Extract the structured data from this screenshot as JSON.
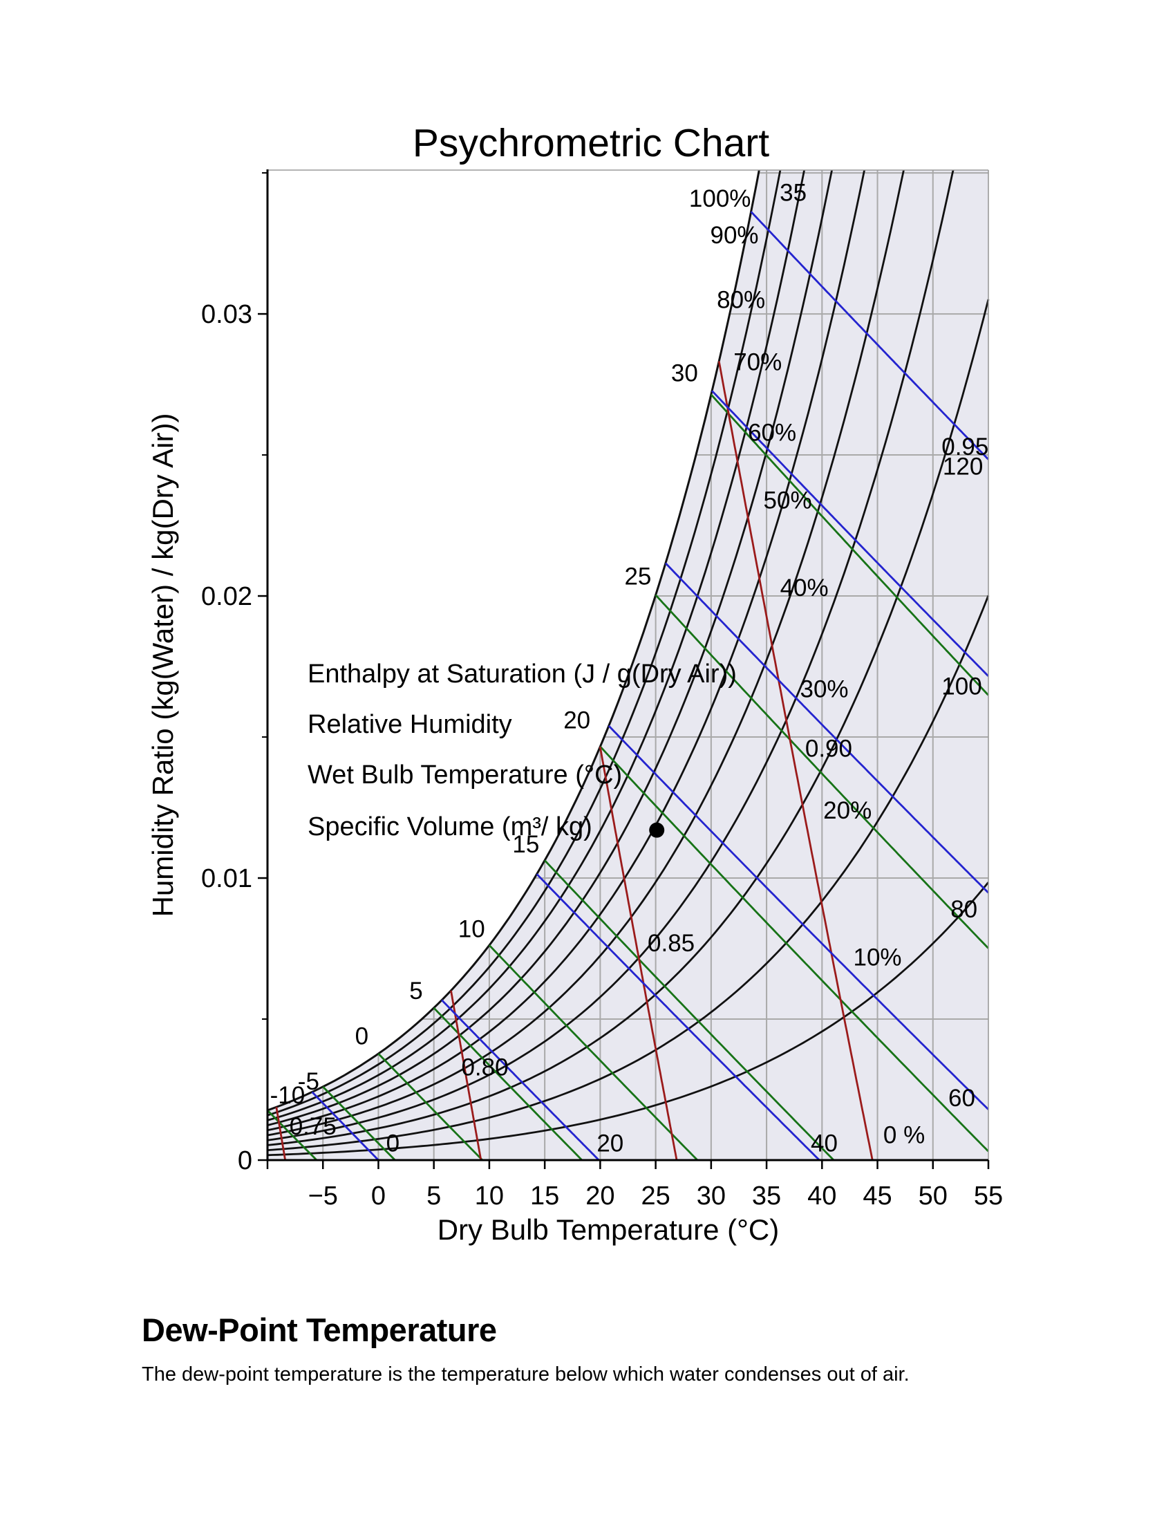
{
  "chart_data": {
    "type": "line",
    "title": "Psychrometric Chart",
    "xlabel": "Dry Bulb Temperature (°C)",
    "ylabel": "Humidity Ratio (kg(Water) / kg(Dry Air))",
    "xlim": [
      -10,
      55
    ],
    "ylim": [
      0,
      0.0351
    ],
    "grid": true,
    "x_ticks": [
      {
        "v": -10,
        "label": ""
      },
      {
        "v": -5,
        "label": "−5"
      },
      {
        "v": 0,
        "label": "0"
      },
      {
        "v": 5,
        "label": "5"
      },
      {
        "v": 10,
        "label": "10"
      },
      {
        "v": 15,
        "label": "15"
      },
      {
        "v": 20,
        "label": "20"
      },
      {
        "v": 25,
        "label": "25"
      },
      {
        "v": 30,
        "label": "30"
      },
      {
        "v": 35,
        "label": "35"
      },
      {
        "v": 40,
        "label": "40"
      },
      {
        "v": 45,
        "label": "45"
      },
      {
        "v": 50,
        "label": "50"
      },
      {
        "v": 55,
        "label": "55"
      }
    ],
    "y_ticks_major": [
      {
        "v": 0,
        "label": "0"
      },
      {
        "v": 0.01,
        "label": "0.01"
      },
      {
        "v": 0.02,
        "label": "0.02"
      },
      {
        "v": 0.03,
        "label": "0.03"
      }
    ],
    "y_ticks_minor": [
      0.005,
      0.015,
      0.025,
      0.035
    ],
    "grid_x": [
      -5,
      0,
      5,
      10,
      15,
      20,
      25,
      30,
      35,
      40,
      45,
      50
    ],
    "grid_y": [
      0.005,
      0.01,
      0.015,
      0.02,
      0.025,
      0.03,
      0.035
    ],
    "colors": {
      "relative_humidity": "#111111",
      "enthalpy": "#2424cf",
      "wet_bulb": "#177317",
      "specific_volume": "#9b1b1b",
      "grid": "#a9a9a9",
      "plot_background": "#e8e8f0",
      "axis": "#000000",
      "page_background": "#ffffff",
      "marker": "#000000"
    },
    "series": {
      "relative_humidity": {
        "name": "Relative Humidity",
        "unit": "%",
        "values": [
          0,
          10,
          20,
          30,
          40,
          50,
          60,
          70,
          80,
          90,
          100
        ],
        "annotations": [
          [
            "100%",
            30.8,
            0.0341
          ],
          [
            "90%",
            32.1,
            0.0328
          ],
          [
            "80%",
            32.7,
            0.0305
          ],
          [
            "70%",
            34.2,
            0.0283
          ],
          [
            "60%",
            35.5,
            0.0258
          ],
          [
            "50%",
            36.9,
            0.0234
          ],
          [
            "40%",
            38.4,
            0.0203
          ],
          [
            "30%",
            40.2,
            0.0167
          ],
          [
            "20%",
            42.3,
            0.0124
          ],
          [
            "10%",
            45.0,
            0.0072
          ],
          [
            "0 %",
            47.4,
            0.0009
          ]
        ]
      },
      "enthalpy": {
        "name": "Enthalpy at Saturation",
        "unit": "J/g(Dry Air)",
        "values": [
          0,
          20,
          40,
          60,
          80,
          100,
          120
        ],
        "annotations": [
          [
            "0",
            1.3,
            0.0006
          ],
          [
            "20",
            20.9,
            0.0006
          ],
          [
            "40",
            40.2,
            0.0006
          ],
          [
            "60",
            52.6,
            0.0022
          ],
          [
            "80",
            52.8,
            0.0089
          ],
          [
            "100",
            52.6,
            0.0168
          ],
          [
            "120",
            52.7,
            0.0246
          ]
        ]
      },
      "wet_bulb": {
        "name": "Wet Bulb Temperature",
        "unit": "°C",
        "values": [
          -10,
          -5,
          0,
          5,
          10,
          15,
          20,
          25,
          30,
          35
        ],
        "annotations": [
          [
            "-10",
            -8.2,
            0.0023
          ],
          [
            "-5",
            -6.3,
            0.0028
          ],
          [
            "0",
            -1.5,
            0.0044
          ],
          [
            "5",
            3.4,
            0.006
          ],
          [
            "10",
            8.4,
            0.0082
          ],
          [
            "15",
            13.3,
            0.0112
          ],
          [
            "20",
            17.9,
            0.0156
          ],
          [
            "25",
            23.4,
            0.0207
          ],
          [
            "30",
            27.6,
            0.0279
          ],
          [
            "35",
            37.4,
            0.0343
          ]
        ]
      },
      "specific_volume": {
        "name": "Specific Volume",
        "unit": "m³/kg",
        "values": [
          0.75,
          0.8,
          0.85,
          0.9,
          0.95
        ],
        "annotations": [
          [
            "0.75",
            -5.9,
            0.0012
          ],
          [
            "0.80",
            9.6,
            0.0033
          ],
          [
            "0.85",
            26.4,
            0.0077
          ],
          [
            "0.90",
            40.6,
            0.0146
          ],
          [
            "0.95",
            52.9,
            0.0253
          ]
        ]
      }
    },
    "marker": {
      "t": 25.1,
      "w": 0.0117
    },
    "legend": [
      {
        "text": "Enthalpy at Saturation (J / g(Dry Air))",
        "color_key": "enthalpy"
      },
      {
        "text": "Relative Humidity",
        "color_key": "relative_humidity"
      },
      {
        "text": "Wet Bulb Temperature (°C)",
        "color_key": "wet_bulb"
      },
      {
        "text": "Specific Volume (m³/ kg)",
        "color_key": "specific_volume"
      }
    ]
  },
  "document": {
    "heading": "Dew-Point Temperature",
    "body": "The dew-point temperature is the temperature below which water condenses out of air."
  }
}
